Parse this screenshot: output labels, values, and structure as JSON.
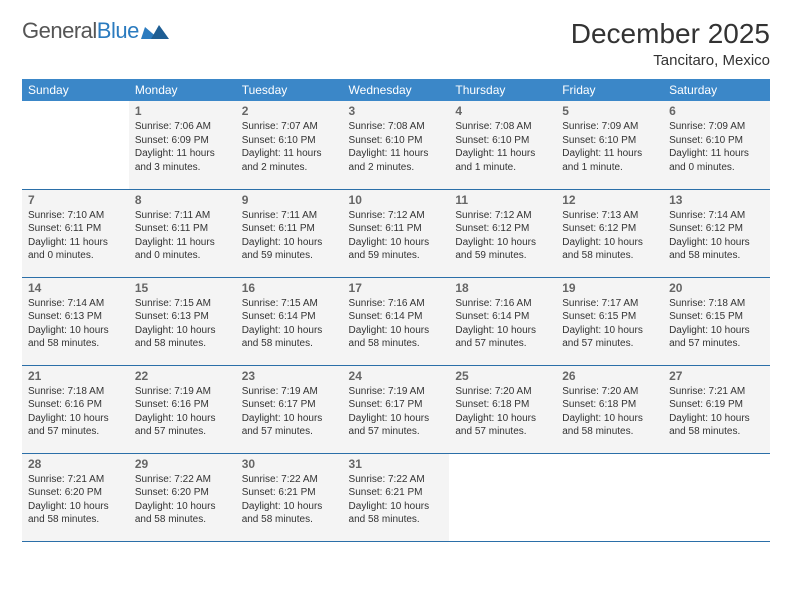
{
  "logo": {
    "text_part1": "General",
    "text_part2": "Blue"
  },
  "title": "December 2025",
  "location": "Tancitaro, Mexico",
  "colors": {
    "header_bg": "#3b87c8",
    "header_text": "#ffffff",
    "cell_bg": "#f4f4f4",
    "border": "#2b6fa8",
    "logo_blue": "#2b7bbf",
    "text": "#333333"
  },
  "weekdays": [
    "Sunday",
    "Monday",
    "Tuesday",
    "Wednesday",
    "Thursday",
    "Friday",
    "Saturday"
  ],
  "weeks": [
    [
      null,
      {
        "n": "1",
        "sr": "Sunrise: 7:06 AM",
        "ss": "Sunset: 6:09 PM",
        "d1": "Daylight: 11 hours",
        "d2": "and 3 minutes."
      },
      {
        "n": "2",
        "sr": "Sunrise: 7:07 AM",
        "ss": "Sunset: 6:10 PM",
        "d1": "Daylight: 11 hours",
        "d2": "and 2 minutes."
      },
      {
        "n": "3",
        "sr": "Sunrise: 7:08 AM",
        "ss": "Sunset: 6:10 PM",
        "d1": "Daylight: 11 hours",
        "d2": "and 2 minutes."
      },
      {
        "n": "4",
        "sr": "Sunrise: 7:08 AM",
        "ss": "Sunset: 6:10 PM",
        "d1": "Daylight: 11 hours",
        "d2": "and 1 minute."
      },
      {
        "n": "5",
        "sr": "Sunrise: 7:09 AM",
        "ss": "Sunset: 6:10 PM",
        "d1": "Daylight: 11 hours",
        "d2": "and 1 minute."
      },
      {
        "n": "6",
        "sr": "Sunrise: 7:09 AM",
        "ss": "Sunset: 6:10 PM",
        "d1": "Daylight: 11 hours",
        "d2": "and 0 minutes."
      }
    ],
    [
      {
        "n": "7",
        "sr": "Sunrise: 7:10 AM",
        "ss": "Sunset: 6:11 PM",
        "d1": "Daylight: 11 hours",
        "d2": "and 0 minutes."
      },
      {
        "n": "8",
        "sr": "Sunrise: 7:11 AM",
        "ss": "Sunset: 6:11 PM",
        "d1": "Daylight: 11 hours",
        "d2": "and 0 minutes."
      },
      {
        "n": "9",
        "sr": "Sunrise: 7:11 AM",
        "ss": "Sunset: 6:11 PM",
        "d1": "Daylight: 10 hours",
        "d2": "and 59 minutes."
      },
      {
        "n": "10",
        "sr": "Sunrise: 7:12 AM",
        "ss": "Sunset: 6:11 PM",
        "d1": "Daylight: 10 hours",
        "d2": "and 59 minutes."
      },
      {
        "n": "11",
        "sr": "Sunrise: 7:12 AM",
        "ss": "Sunset: 6:12 PM",
        "d1": "Daylight: 10 hours",
        "d2": "and 59 minutes."
      },
      {
        "n": "12",
        "sr": "Sunrise: 7:13 AM",
        "ss": "Sunset: 6:12 PM",
        "d1": "Daylight: 10 hours",
        "d2": "and 58 minutes."
      },
      {
        "n": "13",
        "sr": "Sunrise: 7:14 AM",
        "ss": "Sunset: 6:12 PM",
        "d1": "Daylight: 10 hours",
        "d2": "and 58 minutes."
      }
    ],
    [
      {
        "n": "14",
        "sr": "Sunrise: 7:14 AM",
        "ss": "Sunset: 6:13 PM",
        "d1": "Daylight: 10 hours",
        "d2": "and 58 minutes."
      },
      {
        "n": "15",
        "sr": "Sunrise: 7:15 AM",
        "ss": "Sunset: 6:13 PM",
        "d1": "Daylight: 10 hours",
        "d2": "and 58 minutes."
      },
      {
        "n": "16",
        "sr": "Sunrise: 7:15 AM",
        "ss": "Sunset: 6:14 PM",
        "d1": "Daylight: 10 hours",
        "d2": "and 58 minutes."
      },
      {
        "n": "17",
        "sr": "Sunrise: 7:16 AM",
        "ss": "Sunset: 6:14 PM",
        "d1": "Daylight: 10 hours",
        "d2": "and 58 minutes."
      },
      {
        "n": "18",
        "sr": "Sunrise: 7:16 AM",
        "ss": "Sunset: 6:14 PM",
        "d1": "Daylight: 10 hours",
        "d2": "and 57 minutes."
      },
      {
        "n": "19",
        "sr": "Sunrise: 7:17 AM",
        "ss": "Sunset: 6:15 PM",
        "d1": "Daylight: 10 hours",
        "d2": "and 57 minutes."
      },
      {
        "n": "20",
        "sr": "Sunrise: 7:18 AM",
        "ss": "Sunset: 6:15 PM",
        "d1": "Daylight: 10 hours",
        "d2": "and 57 minutes."
      }
    ],
    [
      {
        "n": "21",
        "sr": "Sunrise: 7:18 AM",
        "ss": "Sunset: 6:16 PM",
        "d1": "Daylight: 10 hours",
        "d2": "and 57 minutes."
      },
      {
        "n": "22",
        "sr": "Sunrise: 7:19 AM",
        "ss": "Sunset: 6:16 PM",
        "d1": "Daylight: 10 hours",
        "d2": "and 57 minutes."
      },
      {
        "n": "23",
        "sr": "Sunrise: 7:19 AM",
        "ss": "Sunset: 6:17 PM",
        "d1": "Daylight: 10 hours",
        "d2": "and 57 minutes."
      },
      {
        "n": "24",
        "sr": "Sunrise: 7:19 AM",
        "ss": "Sunset: 6:17 PM",
        "d1": "Daylight: 10 hours",
        "d2": "and 57 minutes."
      },
      {
        "n": "25",
        "sr": "Sunrise: 7:20 AM",
        "ss": "Sunset: 6:18 PM",
        "d1": "Daylight: 10 hours",
        "d2": "and 57 minutes."
      },
      {
        "n": "26",
        "sr": "Sunrise: 7:20 AM",
        "ss": "Sunset: 6:18 PM",
        "d1": "Daylight: 10 hours",
        "d2": "and 58 minutes."
      },
      {
        "n": "27",
        "sr": "Sunrise: 7:21 AM",
        "ss": "Sunset: 6:19 PM",
        "d1": "Daylight: 10 hours",
        "d2": "and 58 minutes."
      }
    ],
    [
      {
        "n": "28",
        "sr": "Sunrise: 7:21 AM",
        "ss": "Sunset: 6:20 PM",
        "d1": "Daylight: 10 hours",
        "d2": "and 58 minutes."
      },
      {
        "n": "29",
        "sr": "Sunrise: 7:22 AM",
        "ss": "Sunset: 6:20 PM",
        "d1": "Daylight: 10 hours",
        "d2": "and 58 minutes."
      },
      {
        "n": "30",
        "sr": "Sunrise: 7:22 AM",
        "ss": "Sunset: 6:21 PM",
        "d1": "Daylight: 10 hours",
        "d2": "and 58 minutes."
      },
      {
        "n": "31",
        "sr": "Sunrise: 7:22 AM",
        "ss": "Sunset: 6:21 PM",
        "d1": "Daylight: 10 hours",
        "d2": "and 58 minutes."
      },
      null,
      null,
      null
    ]
  ]
}
